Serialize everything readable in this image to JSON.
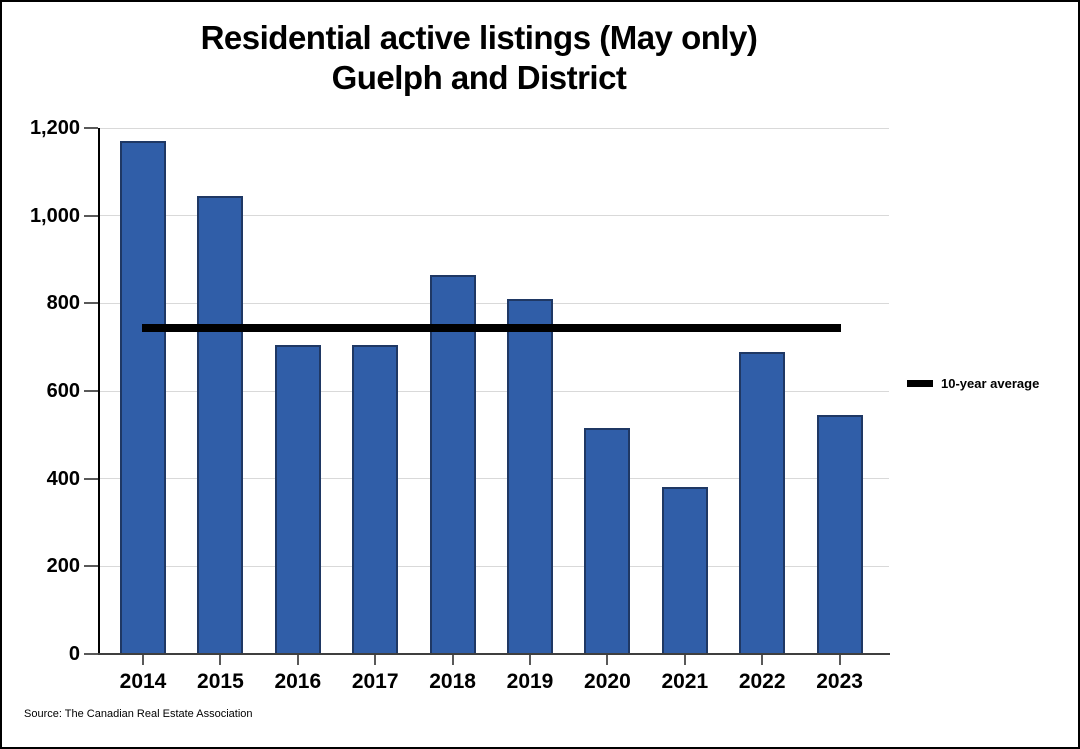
{
  "title": {
    "line1": "Residential active listings (May only)",
    "line2": "Guelph and District"
  },
  "legend": {
    "label": "10-year average"
  },
  "source": "Source: The Canadian Real Estate Association",
  "colors": {
    "bar_fill": "#305ea8",
    "bar_border": "#1f3864",
    "average_line": "#000000",
    "gridline": "#d9d9d9",
    "background": "#ffffff"
  },
  "chart_data": {
    "type": "bar",
    "title": "Residential active listings (May only) Guelph and District",
    "categories": [
      "2014",
      "2015",
      "2016",
      "2017",
      "2018",
      "2019",
      "2020",
      "2021",
      "2022",
      "2023"
    ],
    "values": [
      1170,
      1045,
      705,
      705,
      865,
      810,
      515,
      380,
      690,
      545
    ],
    "average_line": {
      "label": "10-year average",
      "value": 743,
      "color": "#000000"
    },
    "xlabel": "",
    "ylabel": "",
    "ylim": [
      0,
      1200
    ],
    "ytick_interval": 200,
    "ytick_labels": [
      "0",
      "200",
      "400",
      "600",
      "800",
      "1,000",
      "1,200"
    ],
    "grid": true,
    "legend_position": "right"
  }
}
